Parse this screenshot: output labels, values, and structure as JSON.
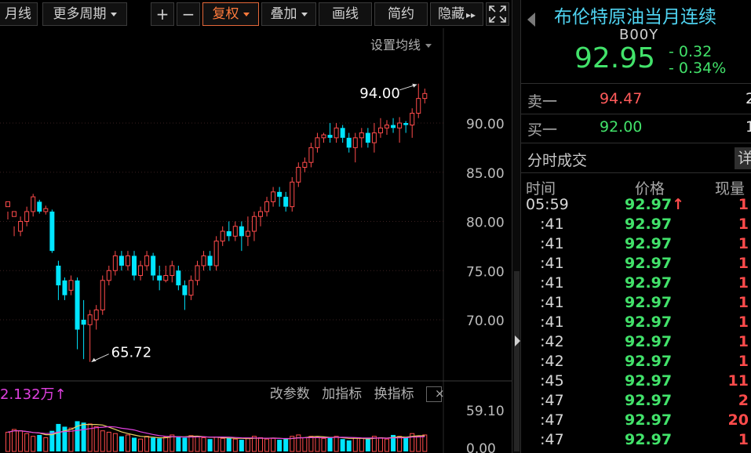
{
  "toolbar": {
    "buttons": [
      {
        "label": "月线"
      },
      {
        "label": "更多周期"
      },
      {
        "label": "+"
      },
      {
        "label": "−"
      },
      {
        "label": "复权"
      },
      {
        "label": "叠加"
      },
      {
        "label": "画线"
      },
      {
        "label": "简约"
      },
      {
        "label": "隐藏"
      }
    ],
    "hide_suffix": "▸▸"
  },
  "main_chart": {
    "ma_settings_label": "设置均线",
    "high_label": "94.00",
    "low_label": "65.72",
    "volume_label": "2.132万",
    "volume_arrow": "↑",
    "tools": [
      "改参数",
      "加指标",
      "换指标"
    ],
    "close_symbol": "×"
  },
  "colors": {
    "up": "#ff4b4b",
    "down": "#00e5ff",
    "green": "#42e26a",
    "title": "#4fd4f2",
    "accent": "#e4683a",
    "volume_label": "#e040e0",
    "ma_yellow": "#e8d060",
    "ma_magenta": "#e040e0"
  },
  "chart_data": {
    "type": "candlestick",
    "y_axis_ticks": [
      "90.00",
      "85.00",
      "80.00",
      "75.00",
      "70.00"
    ],
    "y_range": [
      63,
      96
    ],
    "candles": [
      [
        81.5,
        82.0,
        81.0,
        80.2
      ],
      [
        80.5,
        81.0,
        79.5,
        78.5
      ],
      [
        79.0,
        80.0,
        80.5,
        78.5
      ],
      [
        80.0,
        81.0,
        81.5,
        79.5
      ],
      [
        81.0,
        82.5,
        82.8,
        80.5
      ],
      [
        82.0,
        81.0,
        82.2,
        80.8
      ],
      [
        81.0,
        81.3,
        81.6,
        80.7
      ],
      [
        81.0,
        77.0,
        81.2,
        76.8
      ],
      [
        75.5,
        73.5,
        76.0,
        72.0
      ],
      [
        74.0,
        72.5,
        74.3,
        72.0
      ],
      [
        73.0,
        74.0,
        74.5,
        72.5
      ],
      [
        74.0,
        69.0,
        74.3,
        67.0
      ],
      [
        70.0,
        69.5,
        72.0,
        66.0
      ],
      [
        69.5,
        70.5,
        71.0,
        65.72
      ],
      [
        70.0,
        71.0,
        71.5,
        69.0
      ],
      [
        71.0,
        74.0,
        74.5,
        70.5
      ],
      [
        74.0,
        75.0,
        75.5,
        73.5
      ],
      [
        75.0,
        76.5,
        77.0,
        74.5
      ],
      [
        76.5,
        75.5,
        77.0,
        75.0
      ],
      [
        75.5,
        76.5,
        77.0,
        75.0
      ],
      [
        76.5,
        74.5,
        77.0,
        74.0
      ],
      [
        74.5,
        75.5,
        76.0,
        74.0
      ],
      [
        75.5,
        76.5,
        77.0,
        75.0
      ],
      [
        76.5,
        74.5,
        76.8,
        74.0
      ],
      [
        74.5,
        74.0,
        75.5,
        73.0
      ],
      [
        74.0,
        74.5,
        75.5,
        73.8
      ],
      [
        74.5,
        75.5,
        76.0,
        73.8
      ],
      [
        75.0,
        73.5,
        75.5,
        73.0
      ],
      [
        73.5,
        72.5,
        74.0,
        71.0
      ],
      [
        72.5,
        74.0,
        74.5,
        72.0
      ],
      [
        74.0,
        75.5,
        76.0,
        73.5
      ],
      [
        75.5,
        76.5,
        77.0,
        75.0
      ],
      [
        76.5,
        75.5,
        77.0,
        75.0
      ],
      [
        75.5,
        78.0,
        78.5,
        75.0
      ],
      [
        78.0,
        79.0,
        79.5,
        77.5
      ],
      [
        79.0,
        78.5,
        80.0,
        78.0
      ],
      [
        78.5,
        79.5,
        80.0,
        78.0
      ],
      [
        79.5,
        78.5,
        80.0,
        77.0
      ],
      [
        78.5,
        79.0,
        80.5,
        77.5
      ],
      [
        79.0,
        80.5,
        81.0,
        78.0
      ],
      [
        80.5,
        81.0,
        81.5,
        79.5
      ],
      [
        81.0,
        82.0,
        82.5,
        80.5
      ],
      [
        82.0,
        83.0,
        83.5,
        81.5
      ],
      [
        83.0,
        82.5,
        83.5,
        81.5
      ],
      [
        82.5,
        81.5,
        83.0,
        81.0
      ],
      [
        81.5,
        84.0,
        84.5,
        81.0
      ],
      [
        84.0,
        85.5,
        86.0,
        83.5
      ],
      [
        85.5,
        86.0,
        86.5,
        85.0
      ],
      [
        86.0,
        87.5,
        88.0,
        85.5
      ],
      [
        87.5,
        88.5,
        89.0,
        87.0
      ],
      [
        88.5,
        88.8,
        89.0,
        88.0
      ],
      [
        88.8,
        88.5,
        90.0,
        88.0
      ],
      [
        88.5,
        89.5,
        90.0,
        88.0
      ],
      [
        89.5,
        88.5,
        89.8,
        88.0
      ],
      [
        88.5,
        87.5,
        89.0,
        87.0
      ],
      [
        87.5,
        88.5,
        89.0,
        86.0
      ],
      [
        88.5,
        89.0,
        89.5,
        87.5
      ],
      [
        89.0,
        88.0,
        89.5,
        87.5
      ],
      [
        88.0,
        89.0,
        90.0,
        87.0
      ],
      [
        89.0,
        89.5,
        90.5,
        88.5
      ],
      [
        89.5,
        89.8,
        90.3,
        88.8
      ],
      [
        89.8,
        89.5,
        90.5,
        89.0
      ],
      [
        89.5,
        90.0,
        90.6,
        88.0
      ],
      [
        90.0,
        89.8,
        90.2,
        89.0
      ],
      [
        89.8,
        91.0,
        91.5,
        88.5
      ],
      [
        91.0,
        92.5,
        94.0,
        90.5
      ],
      [
        92.5,
        93.0,
        93.5,
        92.0
      ]
    ],
    "volume_axis_ticks": [
      "59.10",
      "0.00"
    ],
    "volume_ylim": [
      0,
      65
    ],
    "volumes": [
      28,
      32,
      30,
      26,
      22,
      24,
      20,
      30,
      40,
      36,
      34,
      44,
      42,
      40,
      36,
      30,
      28,
      26,
      22,
      24,
      20,
      18,
      22,
      20,
      19,
      21,
      24,
      22,
      20,
      23,
      22,
      20,
      18,
      21,
      19,
      20,
      18,
      17,
      19,
      22,
      20,
      18,
      19,
      17,
      18,
      22,
      24,
      20,
      22,
      21,
      19,
      20,
      22,
      18,
      16,
      20,
      19,
      18,
      22,
      20,
      18,
      24,
      22,
      20,
      26,
      22,
      24
    ]
  },
  "panel": {
    "title": "布伦特原油当月连续",
    "code": "B00Y",
    "price": "92.95",
    "change": "- 0.32",
    "change_pct": "- 0.34%",
    "quotes": [
      {
        "label": "卖一",
        "price": "94.47",
        "vol": "2",
        "price_color": "#ff5a5a"
      },
      {
        "label": "买一",
        "price": "92.00",
        "vol": "1",
        "price_color": "#42e26a"
      }
    ],
    "trades_title": "分时成交",
    "detail_label": "详",
    "columns": [
      "时间",
      "价格",
      "现量"
    ],
    "trades": [
      {
        "time": "05:59",
        "price": "92.97",
        "vol": "1",
        "arrow": "🡑"
      },
      {
        "time": "   :41",
        "price": "92.97",
        "vol": "1"
      },
      {
        "time": "   :41",
        "price": "92.97",
        "vol": "1"
      },
      {
        "time": "   :41",
        "price": "92.97",
        "vol": "1"
      },
      {
        "time": "   :41",
        "price": "92.97",
        "vol": "1"
      },
      {
        "time": "   :41",
        "price": "92.97",
        "vol": "1"
      },
      {
        "time": "   :41",
        "price": "92.97",
        "vol": "1"
      },
      {
        "time": "   :42",
        "price": "92.97",
        "vol": "1"
      },
      {
        "time": "   :42",
        "price": "92.97",
        "vol": "1"
      },
      {
        "time": "   :45",
        "price": "92.97",
        "vol": "11"
      },
      {
        "time": "   :47",
        "price": "92.97",
        "vol": "2"
      },
      {
        "time": "   :47",
        "price": "92.97",
        "vol": "20"
      },
      {
        "time": "   :47",
        "price": "92.97",
        "vol": "1"
      }
    ]
  }
}
